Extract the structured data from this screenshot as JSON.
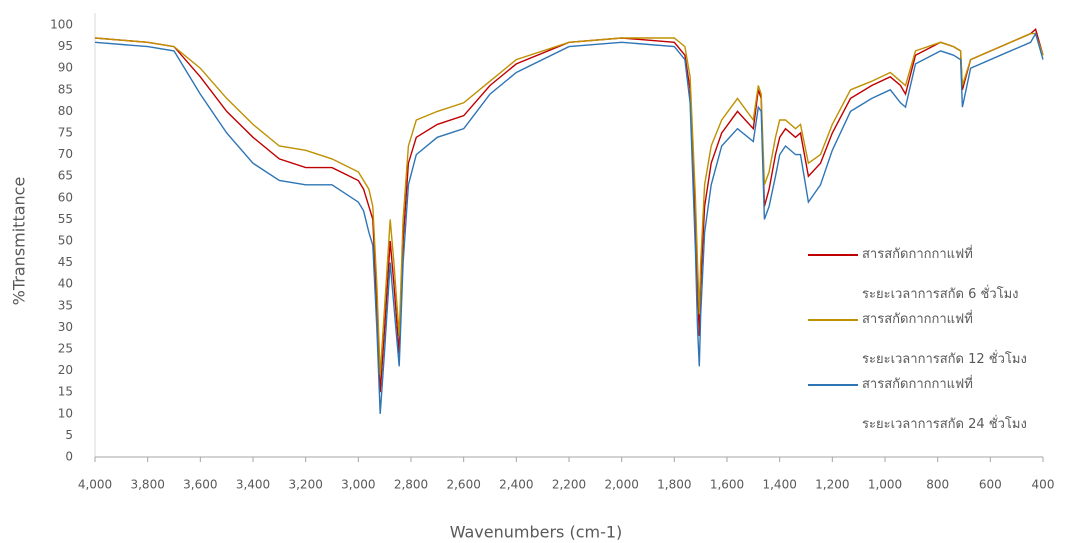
{
  "chart_data": {
    "type": "line",
    "x_label": "Wavenumbers (cm-1)",
    "y_label": "%Transmittance",
    "x": [
      4000,
      3800,
      3700,
      3600,
      3500,
      3400,
      3300,
      3200,
      3100,
      3000,
      2980,
      2960,
      2945,
      2930,
      2917,
      2900,
      2879,
      2865,
      2845,
      2830,
      2810,
      2780,
      2700,
      2600,
      2500,
      2400,
      2200,
      2000,
      1800,
      1760,
      1740,
      1720,
      1712,
      1705,
      1700,
      1685,
      1660,
      1620,
      1560,
      1500,
      1481,
      1470,
      1458,
      1440,
      1416,
      1400,
      1378,
      1340,
      1321,
      1291,
      1245,
      1200,
      1131,
      1050,
      980,
      941,
      922,
      884,
      789,
      740,
      713,
      706,
      675,
      561,
      447,
      428,
      400
    ],
    "series": [
      {
        "name": "สารสกัดกากกาแฟที่\nระยะเวลาการสกัด 6 ชั่วโมง",
        "color": "#c00000",
        "values": [
          97,
          96,
          95,
          88,
          80,
          74,
          69,
          67,
          67,
          64,
          62,
          58,
          55,
          35,
          15,
          30,
          50,
          40,
          24,
          50,
          68,
          74,
          77,
          79,
          86,
          91,
          96,
          97,
          96,
          93,
          85,
          55,
          40,
          28,
          40,
          58,
          68,
          75,
          80,
          76,
          85,
          83,
          58,
          62,
          70,
          74,
          76,
          74,
          75,
          65,
          68,
          75,
          83,
          86,
          88,
          86,
          84,
          93,
          96,
          95,
          94,
          85,
          92,
          95,
          98,
          99,
          93
        ]
      },
      {
        "name": "สารสกัดกากกาแฟที่\nระยะเวลาการสกัด 12 ชั่วโมง",
        "color": "#bf9000",
        "values": [
          97,
          96,
          95,
          90,
          83,
          77,
          72,
          71,
          69,
          66,
          64,
          62,
          58,
          40,
          19,
          35,
          55,
          45,
          28,
          55,
          72,
          78,
          80,
          82,
          87,
          92,
          96,
          97,
          97,
          95,
          88,
          60,
          45,
          33,
          45,
          63,
          72,
          78,
          83,
          78,
          86,
          84,
          63,
          66,
          74,
          78,
          78,
          76,
          77,
          68,
          70,
          77,
          85,
          87,
          89,
          87,
          86,
          94,
          96,
          95,
          94,
          86,
          92,
          95,
          98,
          98,
          93
        ]
      },
      {
        "name": "สารสกัดกากกาแฟที่\nระยะเวลาการสกัด 24 ชั่วโมง",
        "color": "#2e75b6",
        "values": [
          96,
          95,
          94,
          84,
          75,
          68,
          64,
          63,
          63,
          59,
          57,
          52,
          49,
          30,
          10,
          25,
          45,
          35,
          21,
          45,
          63,
          70,
          74,
          76,
          84,
          89,
          95,
          96,
          95,
          92,
          82,
          48,
          30,
          21,
          33,
          52,
          63,
          72,
          76,
          73,
          81,
          80,
          55,
          58,
          65,
          70,
          72,
          70,
          70,
          59,
          63,
          71,
          80,
          83,
          85,
          82,
          81,
          91,
          94,
          93,
          92,
          81,
          90,
          93,
          96,
          98,
          92
        ]
      }
    ],
    "xlim": [
      4000,
      400
    ],
    "xticks": [
      {
        "value": 4000,
        "label": "4,000"
      },
      {
        "value": 3800,
        "label": "3,800"
      },
      {
        "value": 3600,
        "label": "3,600"
      },
      {
        "value": 3400,
        "label": "3,400"
      },
      {
        "value": 3200,
        "label": "3,200"
      },
      {
        "value": 3000,
        "label": "3,000"
      },
      {
        "value": 2800,
        "label": "2,800"
      },
      {
        "value": 2600,
        "label": "2,600"
      },
      {
        "value": 2400,
        "label": "2,400"
      },
      {
        "value": 2200,
        "label": "2,200"
      },
      {
        "value": 2000,
        "label": "2,000"
      },
      {
        "value": 1800,
        "label": "1,800"
      },
      {
        "value": 1600,
        "label": "1,600"
      },
      {
        "value": 1400,
        "label": "1,400"
      },
      {
        "value": 1200,
        "label": "1,200"
      },
      {
        "value": 1000,
        "label": "1,000"
      },
      800,
      600,
      400
    ],
    "ylim": [
      0,
      100
    ],
    "yticks": [
      0,
      5,
      10,
      15,
      20,
      25,
      30,
      35,
      40,
      45,
      50,
      55,
      60,
      65,
      70,
      75,
      80,
      85,
      90,
      95,
      100
    ],
    "legend": "right"
  }
}
